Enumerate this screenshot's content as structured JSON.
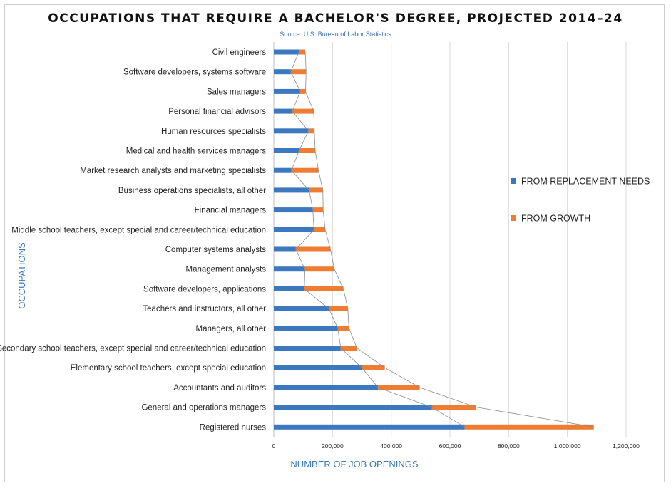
{
  "chart_data": {
    "type": "bar",
    "orientation": "horizontal",
    "stacked": true,
    "title": "OCCUPATIONS THAT REQUIRE A BACHELOR'S DEGREE, PROJECTED 2014–24",
    "subtitle": "Source: U.S. Bureau of Labor Statistics",
    "xlabel": "NUMBER OF JOB OPENINGS",
    "ylabel": "OCCUPATIONS",
    "xlim": [
      0,
      1200000
    ],
    "xticks": [
      0,
      200000,
      400000,
      600000,
      800000,
      1000000,
      1200000
    ],
    "xtick_labels": [
      "0",
      "200,000",
      "400,000",
      "600,000",
      "800,000",
      "1,000,000",
      "1,200,000"
    ],
    "grid": "vertical",
    "legend_position": "right",
    "categories": [
      "Civil engineers",
      "Software developers, systems software",
      "Sales managers",
      "Personal financial advisors",
      "Human resources specialists",
      "Medical and health services managers",
      "Market research analysts and marketing specialists",
      "Business operations specialists, all other",
      "Financial managers",
      "Middle school teachers, except special and career/technical education",
      "Computer systems analysts",
      "Management analysts",
      "Software developers, applications",
      "Teachers and instructors, all other",
      "Managers, all other",
      "Secondary school teachers, except special and career/technical education",
      "Elementary school teachers, except special education",
      "Accountants and auditors",
      "General and operations managers",
      "Registered nurses"
    ],
    "series": [
      {
        "name": "FROM REPLACEMENT NEEDS",
        "color": "#3c78bf",
        "values": [
          85000,
          58000,
          90000,
          63000,
          118000,
          86000,
          60000,
          120000,
          133000,
          137000,
          75000,
          106000,
          104000,
          187000,
          218000,
          228000,
          300000,
          355000,
          538000,
          650000
        ]
      },
      {
        "name": "FROM GROWTH",
        "color": "#ee7d32",
        "values": [
          22000,
          52000,
          18000,
          73000,
          20000,
          55000,
          92000,
          47000,
          35000,
          38000,
          118000,
          100000,
          133000,
          65000,
          38000,
          55000,
          78000,
          142000,
          152000,
          440000
        ]
      }
    ]
  }
}
